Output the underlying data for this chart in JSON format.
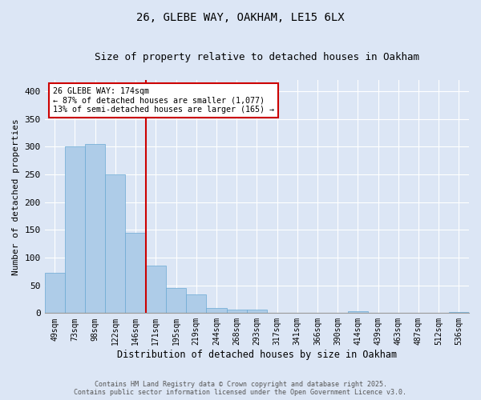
{
  "title1": "26, GLEBE WAY, OAKHAM, LE15 6LX",
  "title2": "Size of property relative to detached houses in Oakham",
  "xlabel": "Distribution of detached houses by size in Oakham",
  "ylabel": "Number of detached properties",
  "categories": [
    "49sqm",
    "73sqm",
    "98sqm",
    "122sqm",
    "146sqm",
    "171sqm",
    "195sqm",
    "219sqm",
    "244sqm",
    "268sqm",
    "293sqm",
    "317sqm",
    "341sqm",
    "366sqm",
    "390sqm",
    "414sqm",
    "439sqm",
    "463sqm",
    "487sqm",
    "512sqm",
    "536sqm"
  ],
  "values": [
    73,
    300,
    304,
    250,
    145,
    85,
    45,
    33,
    9,
    6,
    6,
    0,
    0,
    0,
    0,
    3,
    0,
    0,
    0,
    0,
    2
  ],
  "bar_color": "#aecce8",
  "bar_edge_color": "#6aaad4",
  "vline_color": "#cc0000",
  "vline_index": 4.5,
  "annotation_title": "26 GLEBE WAY: 174sqm",
  "annotation_line1": "← 87% of detached houses are smaller (1,077)",
  "annotation_line2": "13% of semi-detached houses are larger (165) →",
  "annotation_box_color": "#cc0000",
  "ylim": [
    0,
    420
  ],
  "yticks": [
    0,
    50,
    100,
    150,
    200,
    250,
    300,
    350,
    400
  ],
  "footer1": "Contains HM Land Registry data © Crown copyright and database right 2025.",
  "footer2": "Contains public sector information licensed under the Open Government Licence v3.0.",
  "bg_color": "#dce6f5",
  "plot_bg_color": "#dce6f5"
}
